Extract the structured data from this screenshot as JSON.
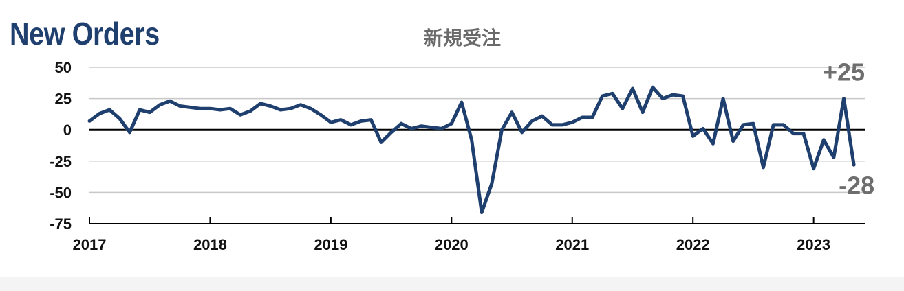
{
  "header": {
    "title": "New Orders",
    "subtitle": "新規受注"
  },
  "colors": {
    "line": "#1f3f6e",
    "title": "#1f3f6e",
    "grid": "#c8c8c8",
    "zero_line": "#000000",
    "annotation": "#6e6e6e"
  },
  "chart_data": {
    "type": "line",
    "title": "New Orders",
    "subtitle": "新規受注",
    "ylim": [
      -75,
      50
    ],
    "yticks": [
      "50",
      "25",
      "0",
      "-25",
      "-50",
      "-75"
    ],
    "xtick_labels": [
      "2017",
      "2018",
      "2019",
      "2020",
      "2021",
      "2022",
      "2023"
    ],
    "grid": "horizontal",
    "x_start": "2017-01",
    "x_end": "2023-05",
    "series": [
      {
        "values": [
          7,
          13,
          16,
          9,
          -2,
          16,
          14,
          20,
          23,
          19,
          18,
          17,
          17,
          16,
          17,
          12,
          15,
          21,
          19,
          16,
          17,
          20,
          17,
          12,
          6,
          8,
          4,
          7,
          8,
          -10,
          -2,
          5,
          1,
          3,
          2,
          1,
          5,
          22,
          -8,
          -66,
          -43,
          0,
          14,
          -2,
          7,
          11,
          4,
          4,
          6,
          10,
          10,
          27,
          29,
          17,
          33,
          14,
          34,
          25,
          28,
          27,
          -5,
          1,
          -11,
          25,
          -9,
          4,
          5,
          -30,
          4,
          4,
          -3,
          -3,
          -31,
          -8,
          -22,
          25,
          -28
        ]
      }
    ],
    "annotations": [
      {
        "text": "+25",
        "x": "2023-04",
        "y": 25
      },
      {
        "text": "-28",
        "x": "2023-05",
        "y": -28
      }
    ]
  }
}
